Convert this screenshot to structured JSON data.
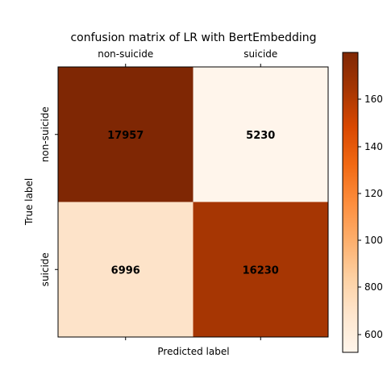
{
  "chart_data": {
    "type": "heatmap",
    "title": "confusion matrix of LR with BertEmbedding",
    "xlabel": "Predicted label",
    "ylabel": "True label",
    "x_categories": [
      "non-suicide",
      "suicide"
    ],
    "y_categories": [
      "non-suicide",
      "suicide"
    ],
    "values": [
      [
        17957,
        5230
      ],
      [
        6996,
        16230
      ]
    ],
    "colormap": "Oranges",
    "colorbar": {
      "ticks": [
        600,
        800,
        100,
        120,
        140,
        160
      ],
      "tick_labels": [
        "600",
        "800",
        "100",
        "120",
        "140",
        "160"
      ]
    },
    "cell_colors": [
      [
        "#7f2704",
        "#fff5eb"
      ],
      [
        "#fde3c9",
        "#a63603"
      ]
    ],
    "colorbar_stops": [
      "#fff5eb",
      "#fee6ce",
      "#fdd0a2",
      "#fdae6b",
      "#fd8d3c",
      "#f16913",
      "#d94801",
      "#a63603",
      "#7f2704"
    ]
  }
}
